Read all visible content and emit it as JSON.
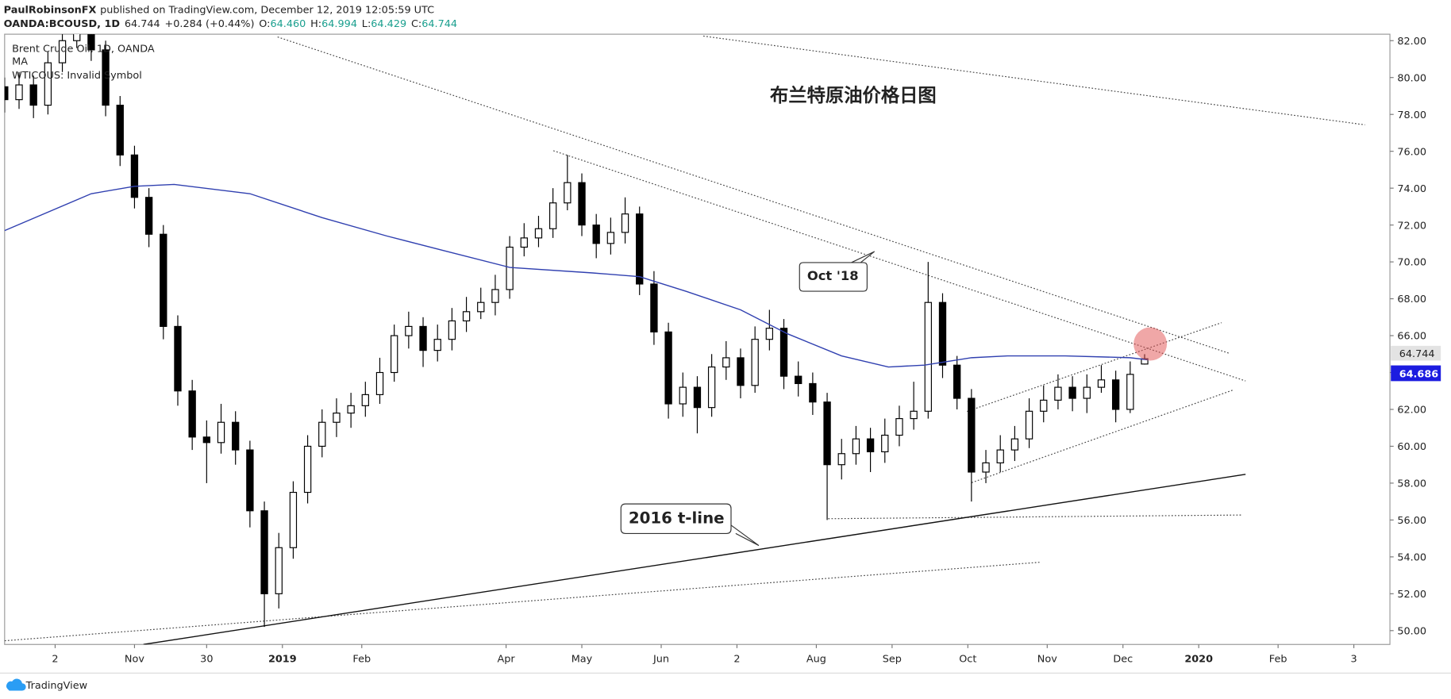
{
  "header": {
    "author": "PaulRobinsonFX",
    "published": "published on TradingView.com, December 12, 2019 12:05:59 UTC",
    "symbol": "OANDA:BCOUSD, 1D",
    "last": "64.744",
    "change": "+0.284 (+0.44%)",
    "ohlc": [
      {
        "label": "O:",
        "value": "64.460"
      },
      {
        "label": "H:",
        "value": "64.994"
      },
      {
        "label": "L:",
        "value": "64.429"
      },
      {
        "label": "C:",
        "value": "64.744"
      }
    ]
  },
  "chart_data": {
    "type": "candlestick",
    "title": "布兰特原油价格日图",
    "source": "Brent Crude Oil, 1D, OANDA",
    "error": "WTICOUS: Invalid Symbol",
    "x": [
      0,
      4,
      8,
      12,
      16,
      20,
      24,
      28,
      32,
      36,
      40,
      44,
      48,
      52,
      56,
      60,
      64,
      68,
      72,
      76,
      80,
      84,
      88,
      92,
      96,
      100,
      104,
      108,
      112,
      116,
      120,
      124,
      128,
      132,
      136,
      140,
      144,
      148,
      152,
      156,
      160,
      164,
      168,
      172,
      176,
      180,
      184,
      188,
      192,
      196,
      200,
      204,
      208,
      212,
      216,
      220,
      224,
      228,
      232,
      236,
      240,
      244,
      248,
      252,
      256,
      260,
      264,
      268,
      272,
      276,
      280,
      284,
      288,
      292,
      296,
      300,
      304,
      308,
      312,
      316
    ],
    "open": [
      79.5,
      78.8,
      79.6,
      78.5,
      80.8,
      82.0,
      83.5,
      81.5,
      78.5,
      75.8,
      73.5,
      71.5,
      66.5,
      63.0,
      60.5,
      60.2,
      61.3,
      59.8,
      56.5,
      52.0,
      54.5,
      57.5,
      60.0,
      61.3,
      61.8,
      62.2,
      62.8,
      64.0,
      66.0,
      66.5,
      65.2,
      65.8,
      66.8,
      67.3,
      67.8,
      68.5,
      70.8,
      71.3,
      71.8,
      73.2,
      74.3,
      72.0,
      71.0,
      71.6,
      72.6,
      68.8,
      66.2,
      62.3,
      63.2,
      62.1,
      64.3,
      64.8,
      63.3,
      65.8,
      66.4,
      63.8,
      63.4,
      62.4,
      59.0,
      59.6,
      60.4,
      59.7,
      60.6,
      61.5,
      61.9,
      67.8,
      64.4,
      62.6,
      58.6,
      59.1,
      59.8,
      60.4,
      61.9,
      62.5,
      63.2,
      62.6,
      63.2,
      63.6,
      62.0,
      64.46
    ],
    "high": [
      80.0,
      80.3,
      80.1,
      81.4,
      82.9,
      84.6,
      84.0,
      82.0,
      79.0,
      76.3,
      74.0,
      72.0,
      67.1,
      63.6,
      61.4,
      62.3,
      61.9,
      60.3,
      57.0,
      55.3,
      58.1,
      60.6,
      62.0,
      62.6,
      62.9,
      63.5,
      64.8,
      66.6,
      67.3,
      67.0,
      66.6,
      67.5,
      68.1,
      68.6,
      69.3,
      71.4,
      72.1,
      72.5,
      74.0,
      75.8,
      74.8,
      72.6,
      72.4,
      73.5,
      73.0,
      69.5,
      66.7,
      64.0,
      63.8,
      65.0,
      65.7,
      65.3,
      66.5,
      67.4,
      66.9,
      64.6,
      64.0,
      62.9,
      60.4,
      61.1,
      61.0,
      61.5,
      62.2,
      63.5,
      70.0,
      68.3,
      64.9,
      63.1,
      59.8,
      60.6,
      61.1,
      62.6,
      63.3,
      63.9,
      63.8,
      63.9,
      64.4,
      64.1,
      64.6,
      64.994
    ],
    "low": [
      78.1,
      78.3,
      77.8,
      78.0,
      80.3,
      81.6,
      80.9,
      77.9,
      75.2,
      72.9,
      70.8,
      65.8,
      62.2,
      59.8,
      58.0,
      59.6,
      59.0,
      55.6,
      50.2,
      51.2,
      53.9,
      56.9,
      59.4,
      60.5,
      61.0,
      61.6,
      62.3,
      63.5,
      65.3,
      64.3,
      64.6,
      65.2,
      66.2,
      66.9,
      67.1,
      68.0,
      70.3,
      70.8,
      71.3,
      72.8,
      71.4,
      70.2,
      70.4,
      71.0,
      68.2,
      65.5,
      61.5,
      61.6,
      60.7,
      61.6,
      63.6,
      62.6,
      62.9,
      65.2,
      63.1,
      62.7,
      61.7,
      56.0,
      58.2,
      59.0,
      58.6,
      59.1,
      60.0,
      60.9,
      61.5,
      63.7,
      62.0,
      57.0,
      58.0,
      58.6,
      59.2,
      59.9,
      61.3,
      62.0,
      61.9,
      61.8,
      62.9,
      61.3,
      61.8,
      64.429
    ],
    "close": [
      78.8,
      79.6,
      78.5,
      80.8,
      82.0,
      83.5,
      81.5,
      78.5,
      75.8,
      73.5,
      71.5,
      66.5,
      63.0,
      60.5,
      60.2,
      61.3,
      59.8,
      56.5,
      52.0,
      54.5,
      57.5,
      60.0,
      61.3,
      61.8,
      62.2,
      62.8,
      64.0,
      66.0,
      66.5,
      65.2,
      65.8,
      66.8,
      67.3,
      67.8,
      68.5,
      70.8,
      71.3,
      71.8,
      73.2,
      74.3,
      72.0,
      71.0,
      71.6,
      72.6,
      68.8,
      66.2,
      62.3,
      63.2,
      62.1,
      64.3,
      64.8,
      63.3,
      65.8,
      66.4,
      63.8,
      63.4,
      62.4,
      59.0,
      59.6,
      60.4,
      59.7,
      60.6,
      61.5,
      61.9,
      67.8,
      64.4,
      62.6,
      58.6,
      59.1,
      59.8,
      60.4,
      61.9,
      62.5,
      63.2,
      62.6,
      63.2,
      63.6,
      62.0,
      63.9,
      64.744
    ],
    "candle_colors": {
      "up": "#ffffff",
      "down": "#000000"
    },
    "series": [
      {
        "name": "MA",
        "color": "#3040b0",
        "x": [
          0,
          24,
          36,
          47,
          68,
          88,
          106,
          122,
          140,
          163,
          176,
          189,
          204,
          217,
          232,
          245,
          255,
          268,
          278,
          294,
          312,
          317
        ],
        "values": [
          71.7,
          73.7,
          74.1,
          74.2,
          73.7,
          72.4,
          71.4,
          70.6,
          69.7,
          69.4,
          69.2,
          68.4,
          67.4,
          66.1,
          64.9,
          64.3,
          64.4,
          64.8,
          64.9,
          64.9,
          64.8,
          64.686
        ]
      }
    ],
    "xlim": [
      0,
      384
    ],
    "xticks": [
      {
        "value": 14,
        "label": "2"
      },
      {
        "value": 36,
        "label": "Nov"
      },
      {
        "value": 56,
        "label": "30"
      },
      {
        "value": 77,
        "label": "2019"
      },
      {
        "value": 99,
        "label": "Feb"
      },
      {
        "value": 139,
        "label": "Apr"
      },
      {
        "value": 160,
        "label": "May"
      },
      {
        "value": 182,
        "label": "Jun"
      },
      {
        "value": 203,
        "label": "2"
      },
      {
        "value": 225,
        "label": "Aug"
      },
      {
        "value": 246,
        "label": "Sep"
      },
      {
        "value": 267,
        "label": "Oct"
      },
      {
        "value": 289,
        "label": "Nov"
      },
      {
        "value": 310,
        "label": "Dec"
      },
      {
        "value": 331,
        "label": "2020"
      },
      {
        "value": 353,
        "label": "Feb"
      },
      {
        "value": 374,
        "label": "3"
      }
    ],
    "ylim": [
      49.25,
      82.35
    ],
    "yticks": [
      {
        "value": 50,
        "label": "50.00"
      },
      {
        "value": 52,
        "label": "52.00"
      },
      {
        "value": 54,
        "label": "54.00"
      },
      {
        "value": 56,
        "label": "56.00"
      },
      {
        "value": 58,
        "label": "58.00"
      },
      {
        "value": 60,
        "label": "60.00"
      },
      {
        "value": 62,
        "label": "62.00"
      },
      {
        "value": 64,
        "label": "64.00"
      },
      {
        "value": 66,
        "label": "66.00"
      },
      {
        "value": 68,
        "label": "68.00"
      },
      {
        "value": 70,
        "label": "70.00"
      },
      {
        "value": 72,
        "label": "72.00"
      },
      {
        "value": 74,
        "label": "74.00"
      },
      {
        "value": 76,
        "label": "76.00"
      },
      {
        "value": 78,
        "label": "78.00"
      },
      {
        "value": 80,
        "label": "80.00"
      },
      {
        "value": 82,
        "label": "82.00"
      }
    ],
    "grid": false,
    "annotations": [
      "Oct '18",
      "2016 t-line"
    ]
  },
  "footer": {
    "brand": "TradingView"
  }
}
